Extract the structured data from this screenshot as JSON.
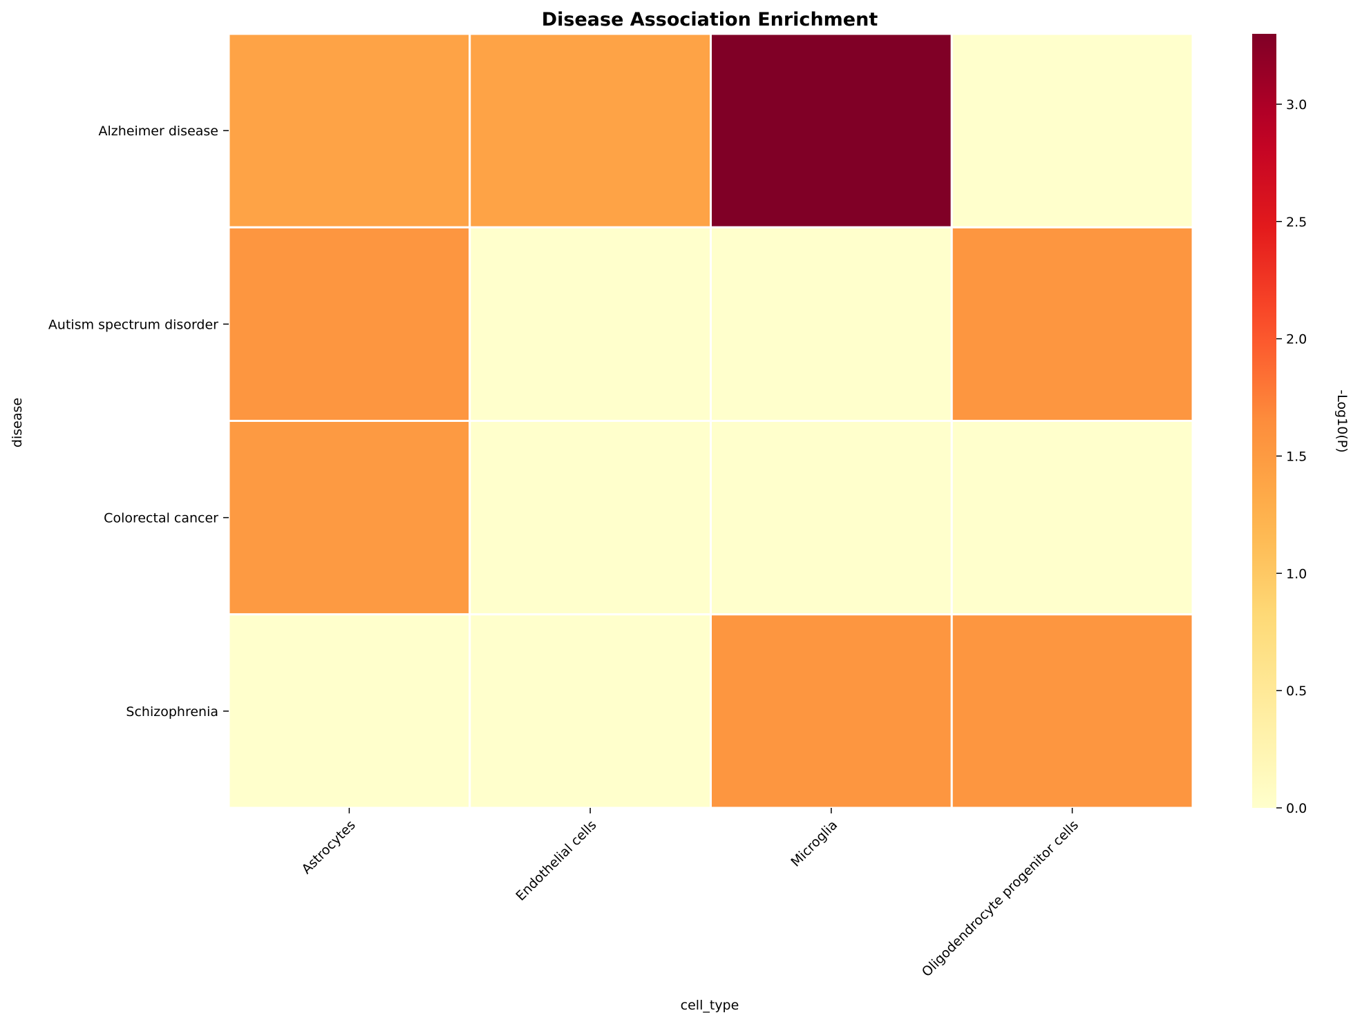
{
  "chart_data": {
    "type": "heatmap",
    "title": "Disease Association Enrichment",
    "xlabel": "cell_type",
    "ylabel": "disease",
    "x_categories": [
      "Astrocytes",
      "Endothelial cells",
      "Microglia",
      "Oligodendrocyte progenitor cells"
    ],
    "y_categories": [
      "Alzheimer disease",
      "Autism spectrum disorder",
      "Colorectal cancer",
      "Schizophrenia"
    ],
    "values": [
      [
        1.4,
        1.4,
        3.3,
        0.0
      ],
      [
        1.55,
        0.0,
        0.0,
        1.55
      ],
      [
        1.5,
        0.0,
        0.0,
        0.0
      ],
      [
        0.0,
        0.0,
        1.55,
        1.55
      ]
    ],
    "colorbar": {
      "label": "-Log10(P)",
      "vmin": 0.0,
      "vmax": 3.3,
      "ticks": [
        0.0,
        0.5,
        1.0,
        1.5,
        2.0,
        2.5,
        3.0
      ],
      "tick_labels": [
        "0.0",
        "0.5",
        "1.0",
        "1.5",
        "2.0",
        "2.5",
        "3.0"
      ],
      "colormap": "YlOrRd"
    },
    "cell_border_color": "#ffffff",
    "legend": "none",
    "grid": false
  }
}
